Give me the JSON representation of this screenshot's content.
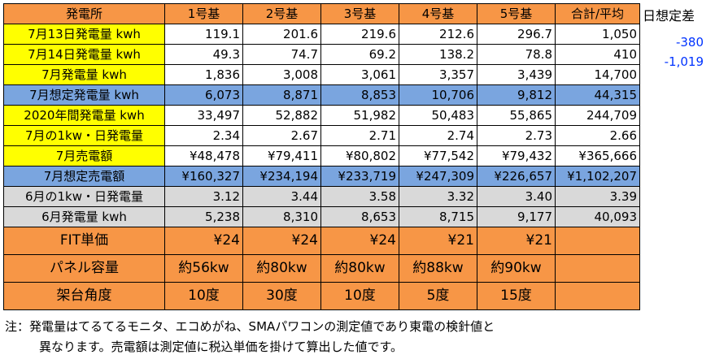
{
  "columns": [
    "発電所",
    "1号基",
    "2号基",
    "3号基",
    "4号基",
    "5号基",
    "合計/平均"
  ],
  "rows": [
    {
      "label": "7月13日発電量 kwh",
      "style": "yellow",
      "cells": [
        "119.1",
        "201.6",
        "219.6",
        "212.6",
        "296.7",
        "1,050"
      ]
    },
    {
      "label": "7月14日発電量 kwh",
      "style": "yellow",
      "cells": [
        "49.3",
        "74.7",
        "69.2",
        "138.2",
        "78.8",
        "410"
      ]
    },
    {
      "label": "7月発電量 kwh",
      "style": "yellow",
      "cells": [
        "1,836",
        "3,008",
        "3,061",
        "3,357",
        "3,439",
        "14,700"
      ]
    },
    {
      "label": "7月想定発電量 kwh",
      "style": "blue",
      "cells": [
        "6,073",
        "8,871",
        "8,853",
        "10,706",
        "9,812",
        "44,315"
      ]
    },
    {
      "label": "2020年間発電量 kwh",
      "style": "yellow",
      "cells": [
        "33,497",
        "52,882",
        "51,982",
        "50,483",
        "55,865",
        "244,709"
      ]
    },
    {
      "label": "7月の1kw・日発電量",
      "style": "yellow",
      "cells": [
        "2.34",
        "2.67",
        "2.71",
        "2.74",
        "2.73",
        "2.66"
      ]
    },
    {
      "label": "7月売電額",
      "style": "yellow",
      "cells": [
        "¥48,478",
        "¥79,411",
        "¥80,802",
        "¥77,542",
        "¥79,432",
        "¥365,666"
      ]
    },
    {
      "label": "7月想定売電額",
      "style": "blue",
      "cells": [
        "¥160,327",
        "¥234,194",
        "¥233,719",
        "¥247,309",
        "¥226,657",
        "¥1,102,207"
      ]
    },
    {
      "label": "6月の1kw・日発電量",
      "style": "gray",
      "cells": [
        "3.12",
        "3.44",
        "3.58",
        "3.32",
        "3.40",
        "3.39"
      ]
    },
    {
      "label": "6月発電量 kwh",
      "style": "gray",
      "cells": [
        "5,238",
        "8,310",
        "8,653",
        "8,715",
        "9,177",
        "40,093"
      ]
    }
  ],
  "tall_rows": [
    {
      "label": "FIT単価",
      "cells": [
        "¥24",
        "¥24",
        "¥24",
        "¥21",
        "¥21",
        ""
      ]
    },
    {
      "label": "パネル容量",
      "cells": [
        "約56kw",
        "約80kw",
        "約80kw",
        "約88kw",
        "約90kw",
        ""
      ]
    },
    {
      "label": "架台角度",
      "cells": [
        "10度",
        "30度",
        "10度",
        "5度",
        "15度",
        ""
      ]
    }
  ],
  "side": {
    "header": "日想定差",
    "diff_0713": "-380",
    "diff_0714": "-1,019"
  },
  "note": {
    "line1": "注：発電量はてるてるモニタ、エコめがね、SMAパワコンの測定値であり東電の検針値と",
    "line2": "異なります。売電額は測定値に税込単価を掛けて算出した値です。"
  },
  "colors": {
    "orange": "#f79646",
    "yellow": "#ffff00",
    "blue": "#7aa5df",
    "gray": "#d9d9d9",
    "diff_text": "#0033ff"
  }
}
